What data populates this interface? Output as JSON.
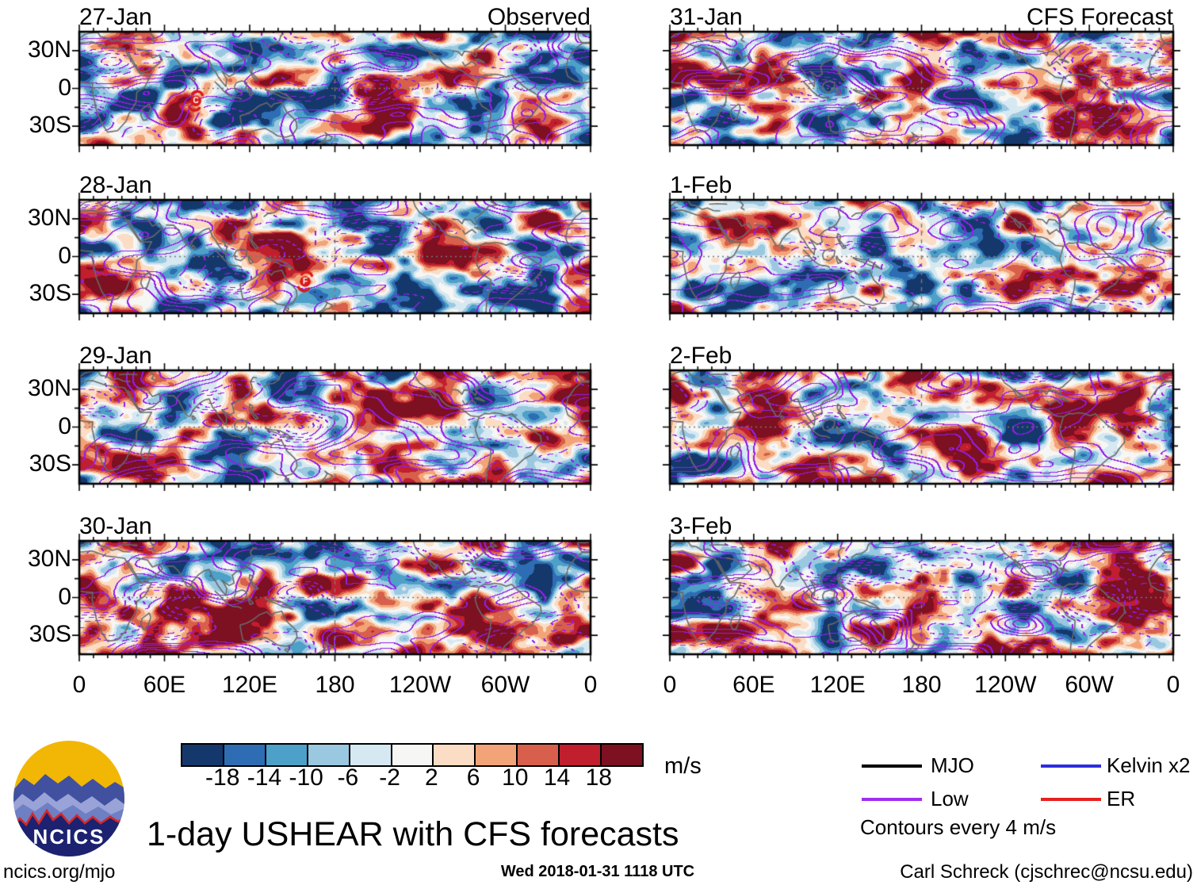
{
  "title": "1-day USHEAR with CFS forecasts",
  "columns": {
    "left_header": "Observed",
    "right_header": "CFS Forecast"
  },
  "panels": [
    {
      "date": "27-Jan",
      "variant": "Observed",
      "seed": 101,
      "storms": [
        {
          "label": "C",
          "fx": 0.228,
          "fy": 0.61
        }
      ]
    },
    {
      "date": "28-Jan",
      "variant": "",
      "seed": 137,
      "storms": [
        {
          "label": "F",
          "fx": 0.442,
          "fy": 0.72
        }
      ]
    },
    {
      "date": "29-Jan",
      "variant": "",
      "seed": 173,
      "storms": []
    },
    {
      "date": "30-Jan",
      "variant": "",
      "seed": 209,
      "storms": []
    },
    {
      "date": "31-Jan",
      "variant": "CFS Forecast",
      "seed": 245,
      "storms": []
    },
    {
      "date": "1-Feb",
      "variant": "",
      "seed": 281,
      "storms": []
    },
    {
      "date": "2-Feb",
      "variant": "",
      "seed": 317,
      "storms": []
    },
    {
      "date": "3-Feb",
      "variant": "",
      "seed": 353,
      "storms": []
    }
  ],
  "axes": {
    "lat_labels": [
      "30N",
      "0",
      "30S"
    ],
    "lat_fracs": [
      0.1667,
      0.5,
      0.8333
    ],
    "lon_labels": [
      "0",
      "60E",
      "120E",
      "180",
      "120W",
      "60W",
      "0"
    ]
  },
  "colorbar": {
    "units": "m/s",
    "tick_labels": [
      "-18",
      "-14",
      "-10",
      "-6",
      "-2",
      "2",
      "6",
      "10",
      "14",
      "18"
    ],
    "colors": [
      "#15386c",
      "#2e6db4",
      "#4da0c8",
      "#9ac8e0",
      "#d6e8f1",
      "#f6f6f4",
      "#fbdcc4",
      "#f2a478",
      "#d75f4b",
      "#c11e2e",
      "#7d1021"
    ]
  },
  "legend": {
    "items": [
      {
        "label": "MJO",
        "color": "#000000"
      },
      {
        "label": "Low",
        "color": "#a12df0"
      },
      {
        "label": "Kelvin x2",
        "color": "#2d2de0"
      },
      {
        "label": "ER",
        "color": "#e62020"
      }
    ],
    "note": "Contours every 4 m/s"
  },
  "logo": {
    "text": "NCICS"
  },
  "footer": {
    "left": "ncics.org/mjo",
    "center": "Wed 2018-01-31 1118 UTC",
    "right": "Carl Schreck (cjschrec@ncsu.edu)"
  },
  "map_style": {
    "contour_color": "#941de8",
    "coast_color": "#6a6a6a",
    "cyclone_color": "#d81a1a"
  },
  "chart_data": {
    "type": "heatmap",
    "title": "1-day USHEAR with CFS forecasts",
    "description": "Eight longitude-time map panels of 1-day vertical wind shear (USHEAR) anomalies: four observed days (27-Jan to 30-Jan) and four CFS forecast days (31-Jan to 3-Feb), filled every 4 m/s from -18 to 18 with wave-filtered contours overlaid.",
    "panels": [
      {
        "date": "27-Jan",
        "source": "Observed"
      },
      {
        "date": "28-Jan",
        "source": "Observed"
      },
      {
        "date": "29-Jan",
        "source": "Observed"
      },
      {
        "date": "30-Jan",
        "source": "Observed"
      },
      {
        "date": "31-Jan",
        "source": "CFS Forecast"
      },
      {
        "date": "1-Feb",
        "source": "CFS Forecast"
      },
      {
        "date": "2-Feb",
        "source": "CFS Forecast"
      },
      {
        "date": "3-Feb",
        "source": "CFS Forecast"
      }
    ],
    "x": {
      "tick_labels": [
        "0",
        "60E",
        "120E",
        "180",
        "120W",
        "60W",
        "0"
      ],
      "range_deg_east": [
        0,
        360
      ]
    },
    "y": {
      "tick_labels": [
        "30N",
        "0",
        "30S"
      ],
      "range_deg_lat": [
        45,
        -45
      ]
    },
    "fill_scale": {
      "units": "m/s",
      "levels": [
        -18,
        -14,
        -10,
        -6,
        -2,
        2,
        6,
        10,
        14,
        18
      ],
      "colors": [
        "#15386c",
        "#2e6db4",
        "#4da0c8",
        "#9ac8e0",
        "#d6e8f1",
        "#f6f6f4",
        "#fbdcc4",
        "#f2a478",
        "#d75f4b",
        "#c11e2e",
        "#7d1021"
      ]
    },
    "contours": {
      "interval": "Contours every 4 m/s",
      "series": [
        "MJO",
        "Low",
        "Kelvin x2",
        "ER"
      ],
      "series_colors": [
        "#000000",
        "#a12df0",
        "#2d2de0",
        "#e62020"
      ]
    },
    "annotations": [
      {
        "panel": "27-Jan",
        "type": "tropical-cyclone",
        "label": "C",
        "approx_lon_e": 82,
        "approx_lat": -10
      },
      {
        "panel": "28-Jan",
        "type": "tropical-cyclone",
        "label": "F",
        "approx_lon_e": 159,
        "approx_lat": -20
      }
    ],
    "legend_position": "bottom-right",
    "grid": "dashed equator and dateline reference lines"
  }
}
